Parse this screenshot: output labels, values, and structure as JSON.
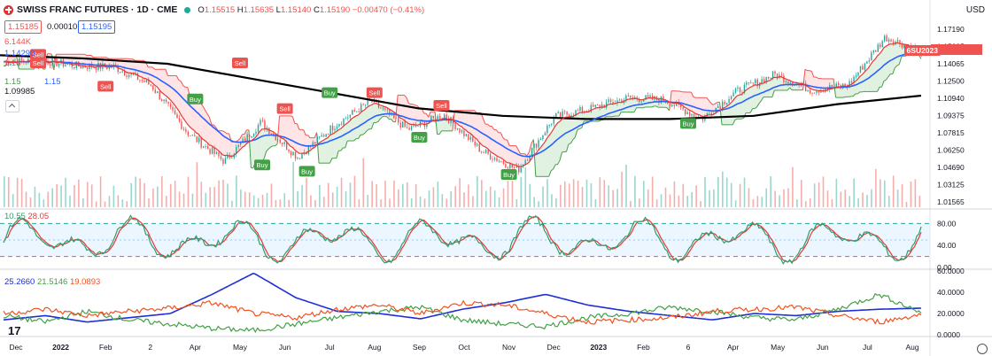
{
  "header": {
    "title": "SWISS FRANC FUTURES · 1D · CME",
    "o_label": "O",
    "o": "1.15515",
    "h_label": "H",
    "h": "1.15635",
    "l_label": "L",
    "l": "1.15140",
    "c_label": "C",
    "c": "1.15190",
    "change": "−0.00470 (−0.41%)"
  },
  "price_boxes": {
    "sell": "1.15185",
    "spread": "0.00010",
    "buy": "1.15195"
  },
  "indicator_legend": {
    "volume": "6.144K",
    "ma1": "1.14290",
    "ma2": "1.15",
    "ma3": "1.09985",
    "ma4": "1.15",
    "line": "1.15"
  },
  "currency": "USD",
  "symbol_tag": "6SU2023",
  "stoch": {
    "k": "10.55",
    "d": "28.05"
  },
  "dmi": {
    "v1": "25.2660",
    "v2": "21.5146",
    "v3": "19.0893"
  },
  "colors": {
    "up": "#26a69a",
    "down": "#ef5350",
    "ema_fast": "#e53935",
    "ema_mid": "#2962ff",
    "sma_long": "#000000",
    "stop_up": "#43a047",
    "stop_down": "#ef5350",
    "stoch_k": "#2e9e6e",
    "stoch_d": "#e53935",
    "dmi_plus": "#43a047",
    "dmi_minus": "#f4511e",
    "adx": "#1e2fd6"
  },
  "chart_data": [
    {
      "type": "candlestick",
      "title": "SWISS FRANC FUTURES · 1D · CME",
      "ylim": [
        1.005,
        1.185
      ],
      "y_ticks": [
        "1.17190",
        "1.15625",
        "1.14065",
        "1.12500",
        "1.10940",
        "1.09375",
        "1.07815",
        "1.06250",
        "1.04690",
        "1.03125",
        "1.01565"
      ],
      "x_ticks": [
        "Dec",
        "2022",
        "Feb",
        "2",
        "Apr",
        "May",
        "Jun",
        "Jul",
        "Aug",
        "Sep",
        "Oct",
        "Nov",
        "Dec",
        "2023",
        "Feb",
        "6",
        "Apr",
        "May",
        "Jun",
        "Jul",
        "Aug"
      ],
      "close_path": [
        [
          "Dec",
          1.142
        ],
        [
          "2022",
          1.143
        ],
        [
          "Feb",
          1.138
        ],
        [
          "2",
          1.137
        ],
        [
          "Apr",
          1.12
        ],
        [
          "May",
          1.075
        ],
        [
          "May2",
          1.048
        ],
        [
          "Jun",
          1.085
        ],
        [
          "Jun2",
          1.052
        ],
        [
          "Jul",
          1.082
        ],
        [
          "Aug",
          1.105
        ],
        [
          "Sep",
          1.078
        ],
        [
          "Sep2",
          1.092
        ],
        [
          "Oct",
          1.058
        ],
        [
          "Nov",
          1.04
        ],
        [
          "Nov2",
          1.09
        ],
        [
          "Dec",
          1.098
        ],
        [
          "2023",
          1.108
        ],
        [
          "Feb",
          1.106
        ],
        [
          "6",
          1.088
        ],
        [
          "Apr",
          1.115
        ],
        [
          "May",
          1.13
        ],
        [
          "Jun",
          1.115
        ],
        [
          "Jul",
          1.12
        ],
        [
          "Jul2",
          1.165
        ],
        [
          "Aug",
          1.152
        ]
      ],
      "signals": [
        {
          "label": "Sell",
          "x": "2022",
          "y": 1.148
        },
        {
          "label": "Sell",
          "x": "2",
          "y": 1.14
        },
        {
          "label": "Buy",
          "x": "Apr",
          "y": 1.106
        },
        {
          "label": "Buy",
          "x": "May2",
          "y": 1.044
        },
        {
          "label": "Sell",
          "x": "Jun",
          "y": 1.097
        },
        {
          "label": "Buy",
          "x": "Jun2",
          "y": 1.038
        },
        {
          "label": "Sell",
          "x": "Aug",
          "y": 1.112
        },
        {
          "label": "Buy",
          "x": "Sep",
          "y": 1.07
        },
        {
          "label": "Sell",
          "x": "Sep2",
          "y": 1.1
        },
        {
          "label": "Buy",
          "x": "Nov",
          "y": 1.035
        },
        {
          "label": "Sell",
          "x": "Feb",
          "y": 1.118
        },
        {
          "label": "Buy",
          "x": "6",
          "y": 1.083
        },
        {
          "label": "Sell",
          "x": "May",
          "y": 1.14
        },
        {
          "label": "Buy",
          "x": "Jul",
          "y": 1.112
        }
      ],
      "sma_long": [
        1.148,
        1.145,
        1.14,
        1.126,
        1.112,
        1.098,
        1.091,
        1.088,
        1.088,
        1.091,
        1.102,
        1.11
      ],
      "legend": "top-left"
    },
    {
      "type": "line",
      "title": "Stochastic",
      "ylim": [
        0,
        100
      ],
      "y_ticks": [
        "80.00",
        "40.00",
        "0.00"
      ],
      "bands": [
        20,
        80
      ]
    },
    {
      "type": "line",
      "title": "DMI",
      "ylim": [
        0,
        60
      ],
      "y_ticks": [
        "60.0000",
        "40.0000",
        "20.0000",
        "0.0000"
      ],
      "series": [
        {
          "values": [
            14,
            18,
            12,
            16,
            20,
            38,
            58,
            35,
            22,
            20,
            15,
            24,
            30,
            38,
            28,
            22,
            18,
            14,
            20,
            18,
            22,
            24,
            25
          ]
        },
        {
          "values": [
            18,
            12,
            22,
            14,
            10,
            6,
            4,
            10,
            16,
            22,
            26,
            14,
            10,
            8,
            16,
            20,
            26,
            22,
            16,
            14,
            24,
            38,
            21
          ]
        },
        {
          "values": [
            20,
            24,
            18,
            22,
            25,
            30,
            20,
            16,
            24,
            28,
            20,
            30,
            28,
            20,
            12,
            14,
            16,
            22,
            24,
            26,
            18,
            12,
            19
          ]
        }
      ]
    }
  ]
}
